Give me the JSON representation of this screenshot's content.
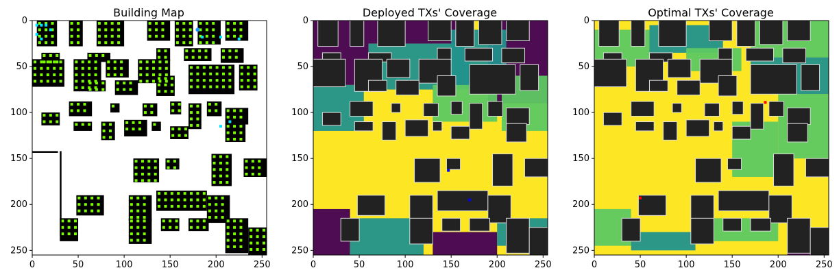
{
  "chart_data": [
    {
      "type": "heatmap",
      "title": "Building Map",
      "xlim": [
        0,
        255
      ],
      "ylim": [
        255,
        0
      ],
      "xticks": [
        0,
        50,
        100,
        150,
        200,
        250
      ],
      "yticks": [
        0,
        50,
        100,
        150,
        200,
        250
      ],
      "background": "white",
      "content": "building footprints (black) with green receiver grid points and blue/cyan markers",
      "markers": {
        "blue": [
          [
            180,
            10
          ]
        ]
      },
      "colors": {
        "building": "#000000",
        "grid_point": "#7cfc00",
        "blue": "#1e90ff",
        "cyan": "#00e5ff"
      }
    },
    {
      "type": "heatmap",
      "title": "Deployed TXs' Coverage",
      "xlim": [
        0,
        255
      ],
      "ylim": [
        255,
        0
      ],
      "xticks": [
        0,
        50,
        100,
        150,
        200,
        250
      ],
      "yticks": [
        0,
        50,
        100,
        150,
        200,
        250
      ],
      "colormap": "viridis",
      "transmitters": [
        [
          147,
          163
        ],
        [
          170,
          195
        ]
      ],
      "transmitter_color": "#0000ff"
    },
    {
      "type": "heatmap",
      "title": "Optimal TXs' Coverage",
      "xlim": [
        0,
        255
      ],
      "ylim": [
        255,
        0
      ],
      "xticks": [
        0,
        50,
        100,
        150,
        200,
        250
      ],
      "yticks": [
        0,
        50,
        100,
        150,
        200,
        250
      ],
      "colormap": "viridis",
      "transmitters": [
        [
          186,
          89
        ],
        [
          50,
          193
        ]
      ],
      "transmitter_color": "#ff0000"
    }
  ],
  "colors": {
    "viridis_low": "#440154",
    "viridis_midlow": "#2b8c8c",
    "viridis_mid": "#21918c",
    "viridis_high": "#5ec962",
    "viridis_top": "#fde725",
    "building_gray": "#222222"
  }
}
